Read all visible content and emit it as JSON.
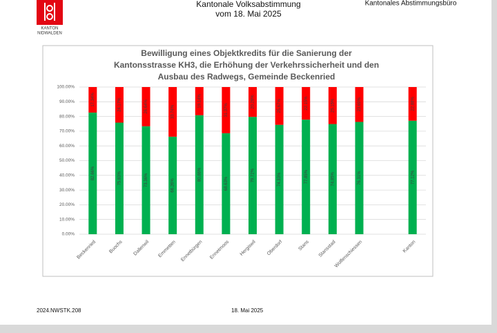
{
  "header": {
    "logo_lines": [
      "KANTON",
      "NIDWALDEN"
    ],
    "title_lines": [
      "Kantonale Volksabstimmung",
      "vom 18. Mai 2025"
    ],
    "office": "Kantonales Abstimmungsbüro"
  },
  "footer": {
    "reference": "2024.NWSTK.208",
    "date": "18. Mai 2025"
  },
  "chart_data": {
    "type": "stacked_bar",
    "title_lines": [
      "Bewilligung eines Objektkredits für die Sanierung der",
      "Kantonsstrasse KH3, die Erhöhung der Verkehrssicherheit und den",
      "Ausbau des Radwegs, Gemeinde Beckenried"
    ],
    "categories": [
      "Beckenried",
      "Buochs",
      "Dallenwil",
      "Emmetten",
      "Ennetbürgen",
      "Ennetmoos",
      "Hergiswil",
      "Oberdorf",
      "Stans",
      "Stansstad",
      "Wolfenschiessen",
      null,
      "Kanton"
    ],
    "series": [
      {
        "color": "#00b050",
        "values": [
          82.66,
          75.83,
          73.36,
          66.26,
          80.86,
          68.63,
          79.72,
          74.33,
          77.85,
          74.85,
          76.31,
          null,
          77.12
        ],
        "value_labels": [
          "82.66%",
          "75.83%",
          "73.36%",
          "66.26%",
          "80.86%",
          "68.63%",
          "79.72%",
          "74.33%",
          "77.85%",
          "74.85%",
          "76.31%",
          null,
          "77.12%"
        ]
      },
      {
        "color": "#ff0000",
        "values": [
          17.34,
          24.17,
          26.64,
          33.74,
          19.14,
          31.37,
          20.28,
          25.67,
          22.15,
          25.15,
          23.69,
          null,
          22.88
        ],
        "value_labels": [
          "17.34%",
          "24.17%",
          "26.64%",
          "33.74%",
          "19.14%",
          "31.37%",
          "20.28%",
          "25.67%",
          "22.15%",
          "25.15%",
          "23.69%",
          null,
          "22.88%"
        ]
      }
    ],
    "ylim": [
      0,
      100
    ],
    "yticks": [
      {
        "value": 0,
        "label": "0.00%"
      },
      {
        "value": 10,
        "label": "10.00%"
      },
      {
        "value": 20,
        "label": "20.00%"
      },
      {
        "value": 30,
        "label": "30.00%"
      },
      {
        "value": 40,
        "label": "40.00%"
      },
      {
        "value": 50,
        "label": "50.00%"
      },
      {
        "value": 60,
        "label": "60.00%"
      },
      {
        "value": 70,
        "label": "70.00%"
      },
      {
        "value": 80,
        "label": "80.00%"
      },
      {
        "value": 90,
        "label": "90.00%"
      },
      {
        "value": 100,
        "label": "100.00%"
      }
    ],
    "grid": true
  }
}
